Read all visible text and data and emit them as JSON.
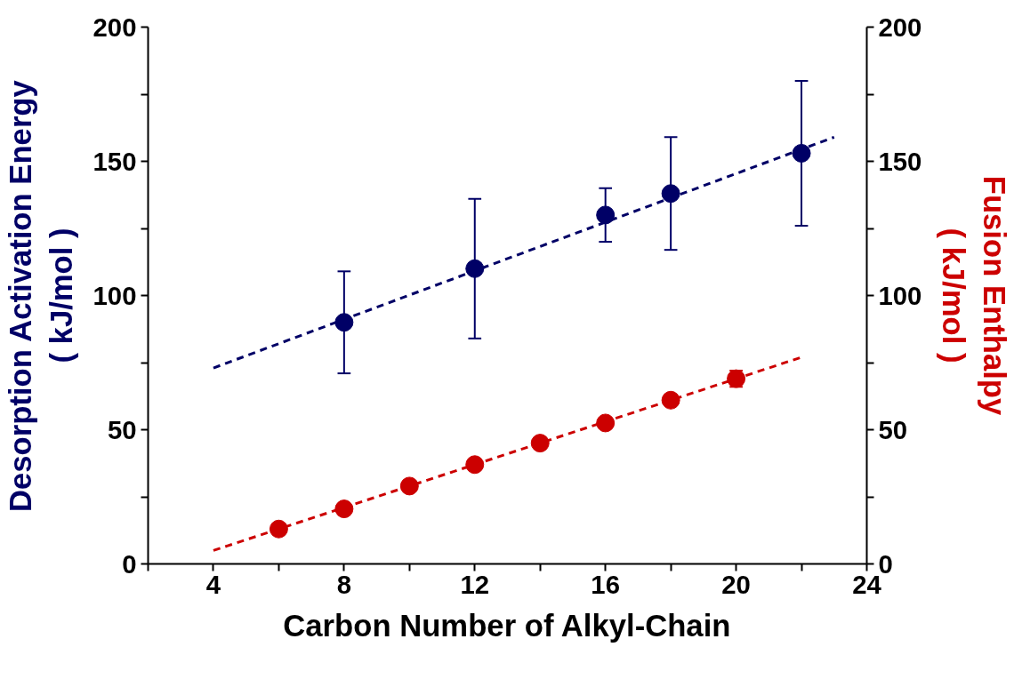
{
  "chart_data": {
    "type": "scatter",
    "xlabel": "Carbon Number of Alkyl-Chain",
    "ylabel": "Desorption Activation Energy\n( kJ/mol )",
    "y2label": "Fusion Enthalpy\n( kJ/mol )",
    "xlim": [
      2,
      24
    ],
    "xticks": [
      {
        "value": 2,
        "label": null
      },
      4,
      {
        "value": 6,
        "label": null
      },
      8,
      {
        "value": 10,
        "label": null
      },
      12,
      {
        "value": 14,
        "label": null
      },
      16,
      {
        "value": 18,
        "label": null
      },
      20,
      {
        "value": 22,
        "label": null
      },
      24
    ],
    "ylim": [
      0,
      200
    ],
    "yticks": [
      0,
      {
        "value": 25,
        "label": null
      },
      50,
      {
        "value": 75,
        "label": null
      },
      100,
      {
        "value": 125,
        "label": null
      },
      150,
      {
        "value": 175,
        "label": null
      },
      200
    ],
    "y2lim": [
      0,
      200
    ],
    "y2ticks": [
      0,
      {
        "value": 25,
        "label": null
      },
      50,
      {
        "value": 75,
        "label": null
      },
      100,
      {
        "value": 125,
        "label": null
      },
      150,
      {
        "value": 175,
        "label": null
      },
      200
    ],
    "grid": false,
    "marker": "circle",
    "series": [
      {
        "color": "#000066",
        "x": [
          8,
          12,
          16,
          18,
          22
        ],
        "values": [
          90,
          110,
          130,
          138,
          153
        ],
        "errors": [
          [
            71,
            109
          ],
          [
            84,
            136
          ],
          [
            120,
            140
          ],
          [
            117,
            159
          ],
          [
            126,
            180
          ]
        ]
      },
      {
        "type": "line",
        "color": "#000066",
        "x": [
          4,
          23
        ],
        "values": [
          73,
          159
        ],
        "marker": "none",
        "line_style": "dashed"
      },
      {
        "axis": "y2",
        "color": "#cc0000",
        "x": [
          6,
          8,
          10,
          12,
          14,
          16,
          18,
          20
        ],
        "values": [
          13,
          20.5,
          29,
          37,
          45,
          52.5,
          61,
          69
        ],
        "errors": [
          null,
          null,
          null,
          null,
          null,
          null,
          null,
          3
        ]
      },
      {
        "type": "line",
        "axis": "y2",
        "color": "#cc0000",
        "x": [
          4,
          22
        ],
        "values": [
          5,
          77
        ],
        "marker": "none",
        "line_style": "dashed"
      }
    ]
  }
}
